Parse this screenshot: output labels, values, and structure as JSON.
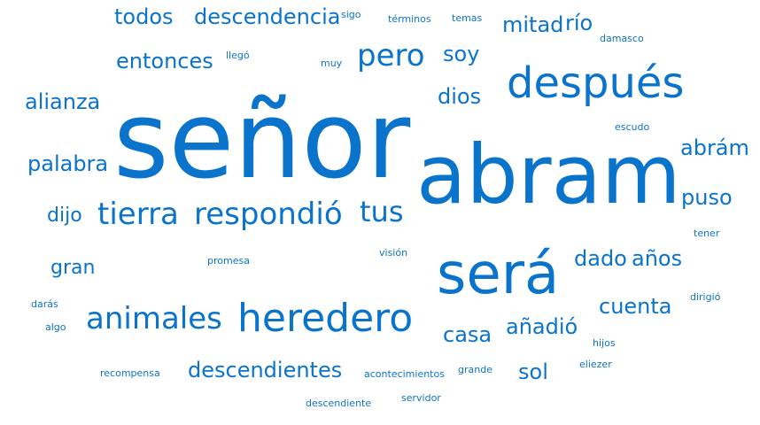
{
  "colors": {
    "word": "#0a74cc",
    "background": "#ffffff"
  },
  "words": [
    {
      "text": "señor",
      "weight": 100
    },
    {
      "text": "abram",
      "weight": 92
    },
    {
      "text": "será",
      "weight": 64
    },
    {
      "text": "después",
      "weight": 48
    },
    {
      "text": "heredero",
      "weight": 42
    },
    {
      "text": "animales",
      "weight": 32
    },
    {
      "text": "respondió",
      "weight": 32
    },
    {
      "text": "tierra",
      "weight": 32
    },
    {
      "text": "pero",
      "weight": 32
    },
    {
      "text": "tus",
      "weight": 30
    },
    {
      "text": "descendientes",
      "weight": 24
    },
    {
      "text": "descendencia",
      "weight": 24
    },
    {
      "text": "entonces",
      "weight": 24
    },
    {
      "text": "alianza",
      "weight": 24
    },
    {
      "text": "palabra",
      "weight": 24
    },
    {
      "text": "todos",
      "weight": 24
    },
    {
      "text": "mitad",
      "weight": 24
    },
    {
      "text": "río",
      "weight": 24
    },
    {
      "text": "soy",
      "weight": 24
    },
    {
      "text": "dios",
      "weight": 24
    },
    {
      "text": "abrám",
      "weight": 24
    },
    {
      "text": "puso",
      "weight": 24
    },
    {
      "text": "dijo",
      "weight": 22
    },
    {
      "text": "gran",
      "weight": 22
    },
    {
      "text": "dado",
      "weight": 24
    },
    {
      "text": "años",
      "weight": 24
    },
    {
      "text": "cuenta",
      "weight": 24
    },
    {
      "text": "casa",
      "weight": 24
    },
    {
      "text": "añadió",
      "weight": 24
    },
    {
      "text": "sol",
      "weight": 24
    },
    {
      "text": "sigo",
      "weight": 10
    },
    {
      "text": "términos",
      "weight": 10
    },
    {
      "text": "temas",
      "weight": 10
    },
    {
      "text": "damasco",
      "weight": 10
    },
    {
      "text": "llegó",
      "weight": 10
    },
    {
      "text": "muy",
      "weight": 10
    },
    {
      "text": "escudo",
      "weight": 10
    },
    {
      "text": "tener",
      "weight": 10
    },
    {
      "text": "promesa",
      "weight": 10
    },
    {
      "text": "visión",
      "weight": 10
    },
    {
      "text": "dirigió",
      "weight": 10
    },
    {
      "text": "darás",
      "weight": 10
    },
    {
      "text": "algo",
      "weight": 10
    },
    {
      "text": "hijos",
      "weight": 10
    },
    {
      "text": "eliezer",
      "weight": 10
    },
    {
      "text": "recompensa",
      "weight": 10
    },
    {
      "text": "acontecimientos",
      "weight": 10
    },
    {
      "text": "grande",
      "weight": 10
    },
    {
      "text": "descendiente",
      "weight": 10
    },
    {
      "text": "servidor",
      "weight": 10
    }
  ]
}
